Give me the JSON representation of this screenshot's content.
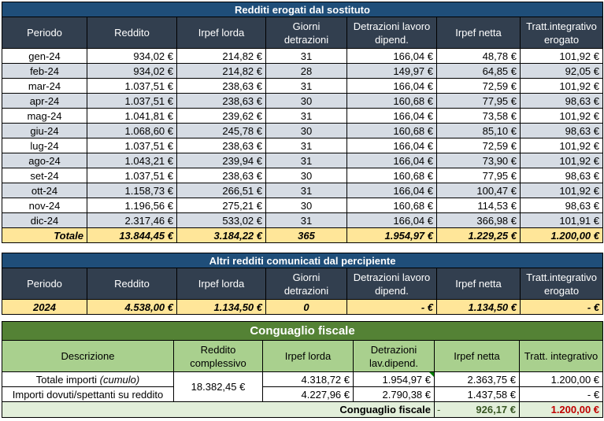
{
  "section1": {
    "title": "Redditi erogati dal sostituto",
    "headers": [
      "Periodo",
      "Reddito",
      "Irpef lorda",
      "Giorni detrazioni",
      "Detrazioni lavoro dipend.",
      "Irpef netta",
      "Tratt.integrativo erogato"
    ],
    "rows": [
      [
        "gen-24",
        "934,02 €",
        "214,82 €",
        "31",
        "166,04 €",
        "48,78 €",
        "101,92 €"
      ],
      [
        "feb-24",
        "934,02 €",
        "214,82 €",
        "28",
        "149,97 €",
        "64,85 €",
        "92,05 €"
      ],
      [
        "mar-24",
        "1.037,51 €",
        "238,63 €",
        "31",
        "166,04 €",
        "72,59 €",
        "101,92 €"
      ],
      [
        "apr-24",
        "1.037,51 €",
        "238,63 €",
        "30",
        "160,68 €",
        "77,95 €",
        "98,63 €"
      ],
      [
        "mag-24",
        "1.041,81 €",
        "239,62 €",
        "31",
        "166,04 €",
        "73,58 €",
        "101,92 €"
      ],
      [
        "giu-24",
        "1.068,60 €",
        "245,78 €",
        "30",
        "160,68 €",
        "85,10 €",
        "98,63 €"
      ],
      [
        "lug-24",
        "1.037,51 €",
        "238,63 €",
        "31",
        "166,04 €",
        "72,59 €",
        "101,92 €"
      ],
      [
        "ago-24",
        "1.043,21 €",
        "239,94 €",
        "31",
        "166,04 €",
        "73,90 €",
        "101,92 €"
      ],
      [
        "set-24",
        "1.037,51 €",
        "238,63 €",
        "30",
        "160,68 €",
        "77,95 €",
        "98,63 €"
      ],
      [
        "ott-24",
        "1.158,73 €",
        "266,51 €",
        "31",
        "166,04 €",
        "100,47 €",
        "101,92 €"
      ],
      [
        "nov-24",
        "1.196,56 €",
        "275,21 €",
        "30",
        "160,68 €",
        "114,53 €",
        "98,63 €"
      ],
      [
        "dic-24",
        "2.317,46 €",
        "533,02 €",
        "31",
        "166,04 €",
        "366,98 €",
        "101,91 €"
      ]
    ],
    "total": [
      "Totale",
      "13.844,45 €",
      "3.184,22 €",
      "365",
      "1.954,97 €",
      "1.229,25 €",
      "1.200,00 €"
    ]
  },
  "section2": {
    "title": "Altri redditi comunicati dal percipiente",
    "headers": [
      "Periodo",
      "Reddito",
      "Irpef lorda",
      "Giorni detrazioni",
      "Detrazioni lavoro dipend.",
      "Irpef netta",
      "Tratt.integrativo erogato"
    ],
    "row": [
      "2024",
      "4.538,00 €",
      "1.134,50 €",
      "0",
      "-   €",
      "1.134,50 €",
      "-   €"
    ]
  },
  "section3": {
    "title": "Conguaglio fiscale",
    "headers": [
      "Descrizione",
      "Reddito complessivo",
      "Irpef lorda",
      "Detrazioni lav.dipend.",
      "Irpef netta",
      "Tratt. integrativo"
    ],
    "row1": {
      "desc": "Totale importi",
      "desc_italic": "(cumulo)",
      "reddito": "18.382,45 €",
      "irpef_lorda": "4.318,72 €",
      "detrazioni": "1.954,97 €",
      "irpef_netta": "2.363,75 €",
      "tratt": "1.200,00 €"
    },
    "row2": {
      "desc": "Importi dovuti/spettanti su reddito",
      "irpef_lorda": "4.227,96 €",
      "detrazioni": "2.790,38 €",
      "irpef_netta": "1.437,58 €",
      "tratt": "-   €"
    },
    "footer": {
      "label": "Conguaglio fiscale",
      "dash": "-",
      "irpef_netta": "926,17 €",
      "tratt": "1.200,00 €"
    }
  },
  "colors": {
    "blue_title": "#1f4e79",
    "grey_header": "#323f4f",
    "grey_row": "#d6dce4",
    "total_row": "#ffe699",
    "green_title": "#548235",
    "green_header": "#a9d08e",
    "light_green": "#e2efda",
    "red": "#c00000"
  }
}
